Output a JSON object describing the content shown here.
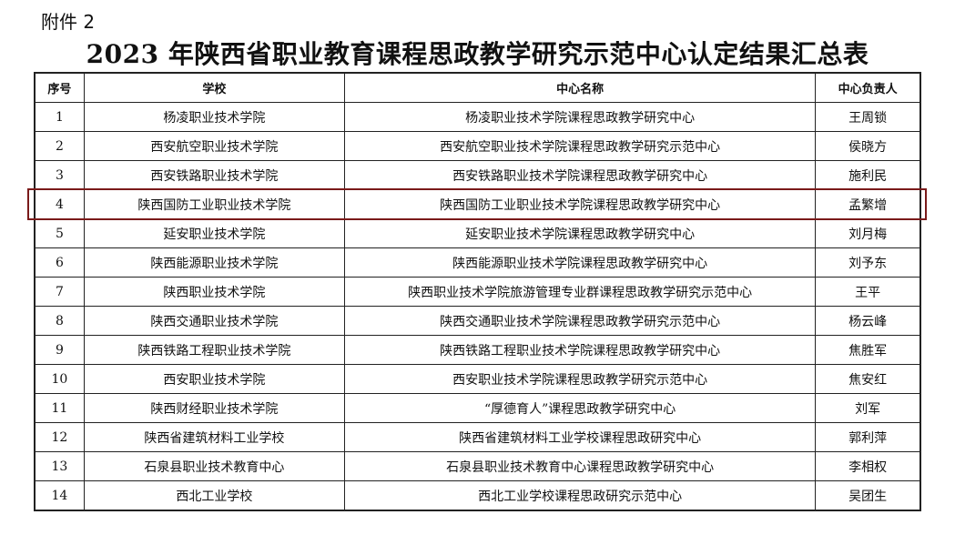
{
  "attachment_label": "附件 2",
  "title": "2023 年陕西省职业教育课程思政教学研究示范中心认定结果汇总表",
  "highlight_color": "#7a1a1a",
  "highlighted_row": 4,
  "table": {
    "headers": [
      "序号",
      "学校",
      "中心名称",
      "中心负责人"
    ],
    "rows": [
      [
        "1",
        "杨凌职业技术学院",
        "杨凌职业技术学院课程思政教学研究中心",
        "王周锁"
      ],
      [
        "2",
        "西安航空职业技术学院",
        "西安航空职业技术学院课程思政教学研究示范中心",
        "侯晓方"
      ],
      [
        "3",
        "西安铁路职业技术学院",
        "西安铁路职业技术学院课程思政教学研究中心",
        "施利民"
      ],
      [
        "4",
        "陕西国防工业职业技术学院",
        "陕西国防工业职业技术学院课程思政教学研究中心",
        "孟繁增"
      ],
      [
        "5",
        "延安职业技术学院",
        "延安职业技术学院课程思政教学研究中心",
        "刘月梅"
      ],
      [
        "6",
        "陕西能源职业技术学院",
        "陕西能源职业技术学院课程思政教学研究中心",
        "刘予东"
      ],
      [
        "7",
        "陕西职业技术学院",
        "陕西职业技术学院旅游管理专业群课程思政教学研究示范中心",
        "王平"
      ],
      [
        "8",
        "陕西交通职业技术学院",
        "陕西交通职业技术学院课程思政教学研究示范中心",
        "杨云峰"
      ],
      [
        "9",
        "陕西铁路工程职业技术学院",
        "陕西铁路工程职业技术学院课程思政教学研究中心",
        "焦胜军"
      ],
      [
        "10",
        "西安职业技术学院",
        "西安职业技术学院课程思政教学研究示范中心",
        "焦安红"
      ],
      [
        "11",
        "陕西财经职业技术学院",
        "“厚德育人”课程思政教学研究中心",
        "刘军"
      ],
      [
        "12",
        "陕西省建筑材料工业学校",
        "陕西省建筑材料工业学校课程思政研究中心",
        "郭利萍"
      ],
      [
        "13",
        "石泉县职业技术教育中心",
        "石泉县职业技术教育中心课程思政教学研究中心",
        "李相权"
      ],
      [
        "14",
        "西北工业学校",
        "西北工业学校课程思政研究示范中心",
        "吴团生"
      ]
    ]
  }
}
